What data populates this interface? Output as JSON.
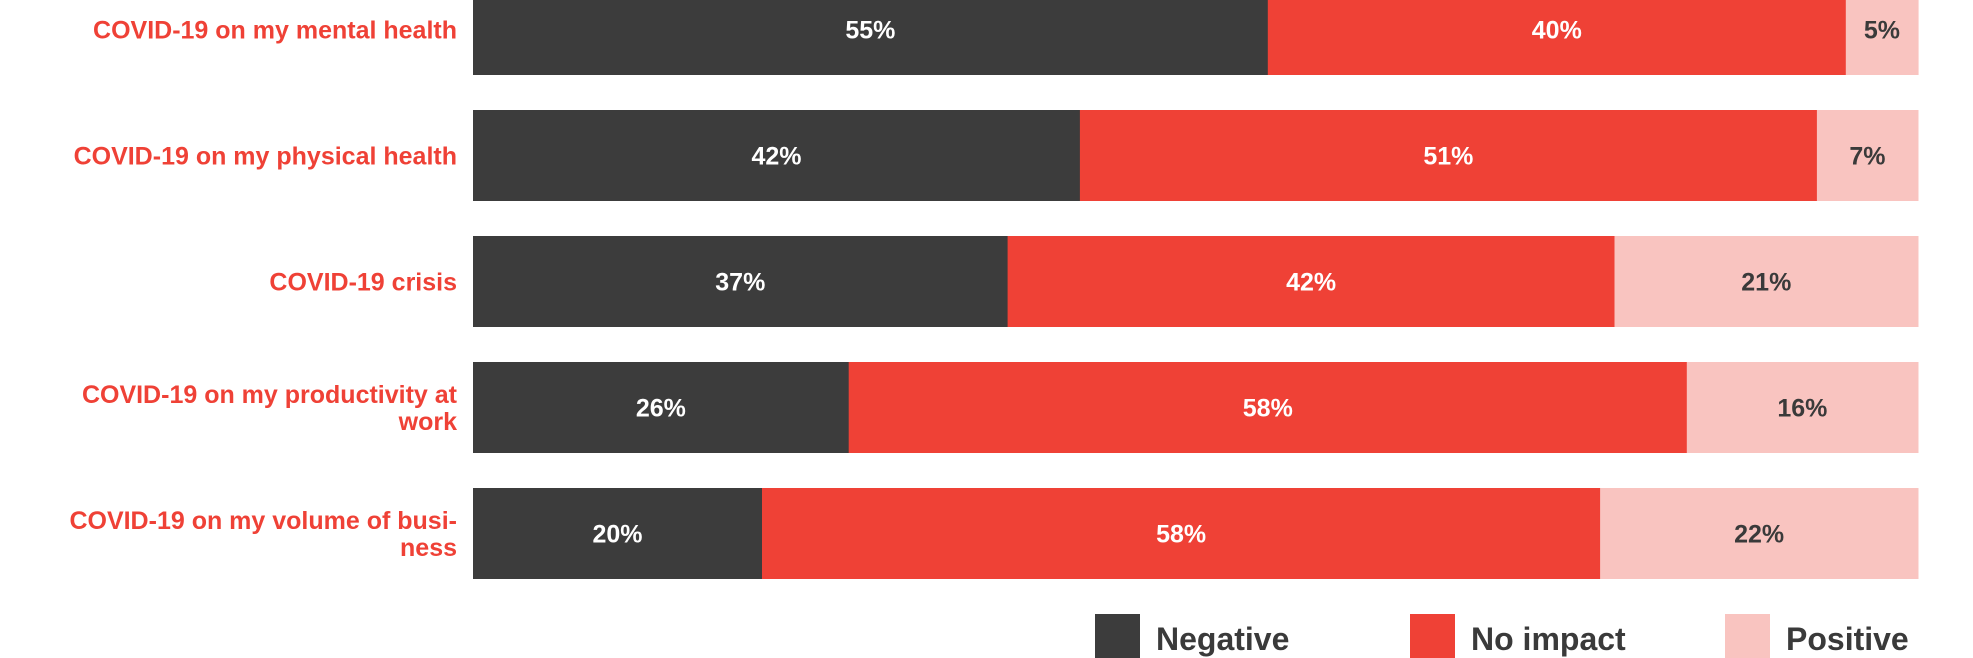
{
  "chart_data": {
    "type": "bar",
    "orientation": "horizontal",
    "stacked": "percent",
    "title": "",
    "xlabel": "",
    "ylabel": "",
    "xlim": [
      0,
      100
    ],
    "categories": [
      "COVID-19 on my mental health",
      "COVID-19 on my physical health",
      "COVID-19 crisis",
      "COVID-19 on my productivity at work",
      "COVID-19 on my volume of business"
    ],
    "category_label_lines": [
      [
        "COVID-19 on my mental health"
      ],
      [
        "COVID-19 on my physical health"
      ],
      [
        "COVID-19 crisis"
      ],
      [
        "COVID-19 on my productivity at",
        "work"
      ],
      [
        "COVID-19 on my volume of busi-",
        "ness"
      ]
    ],
    "series": [
      {
        "name": "Negative",
        "values": [
          55,
          42,
          37,
          26,
          20
        ],
        "labels": [
          "55%",
          "42%",
          "37%",
          "26%",
          "20%"
        ],
        "color": "#3c3c3c",
        "label_color": "#ffffff"
      },
      {
        "name": "No impact",
        "values": [
          40,
          51,
          42,
          58,
          58
        ],
        "labels": [
          "40%",
          "51%",
          "42%",
          "58%",
          "58%"
        ],
        "color": "#ef4136",
        "label_color": "#ffffff"
      },
      {
        "name": "Positive",
        "values": [
          5,
          7,
          21,
          16,
          22
        ],
        "labels": [
          "5%",
          "7%",
          "21%",
          "16%",
          "22%"
        ],
        "color": "#f9c4c0",
        "label_color": "#3a3a3a"
      }
    ],
    "category_label_color": "#ef4136",
    "grid": false,
    "legend": {
      "position": "bottom-right"
    }
  }
}
